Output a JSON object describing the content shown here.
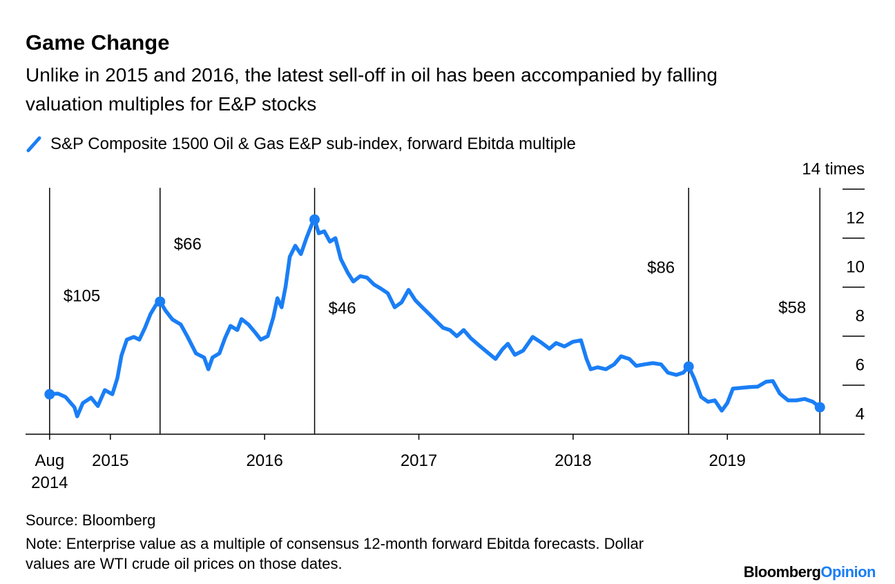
{
  "chart_data": {
    "type": "line",
    "title": "Game Change",
    "subtitle": "Unlike in 2015 and 2016, the latest sell-off in oil has been accompanied by falling valuation multiples for E&P stocks",
    "x": [
      2014.606,
      2014.66,
      2014.709,
      2014.767,
      2014.785,
      2014.821,
      2014.875,
      2014.919,
      2014.964,
      2015.013,
      2015.045,
      2015.072,
      2015.107,
      2015.152,
      2015.188,
      2015.224,
      2015.26,
      2015.295,
      2015.322,
      2015.358,
      2015.403,
      2015.456,
      2015.501,
      2015.555,
      2015.608,
      2015.635,
      2015.662,
      2015.707,
      2015.743,
      2015.779,
      2015.823,
      2015.85,
      2015.895,
      2015.94,
      2015.975,
      2016.02,
      2016.056,
      2016.083,
      2016.11,
      2016.136,
      2016.163,
      2016.199,
      2016.235,
      2016.271,
      2016.306,
      2016.324,
      2016.351,
      2016.387,
      2016.423,
      2016.459,
      2016.494,
      2016.539,
      2016.575,
      2016.62,
      2016.664,
      2016.709,
      2016.754,
      2016.799,
      2016.843,
      2016.888,
      2016.933,
      2016.978,
      2017.022,
      2017.067,
      2017.112,
      2017.157,
      2017.201,
      2017.246,
      2017.291,
      2017.336,
      2017.389,
      2017.443,
      2017.497,
      2017.541,
      2017.577,
      2017.622,
      2017.676,
      2017.738,
      2017.792,
      2017.846,
      2017.89,
      2017.944,
      2017.998,
      2018.051,
      2018.087,
      2018.114,
      2018.159,
      2018.213,
      2018.266,
      2018.311,
      2018.365,
      2018.409,
      2018.463,
      2018.517,
      2018.57,
      2018.615,
      2018.669,
      2018.714,
      2018.749,
      2018.785,
      2018.83,
      2018.875,
      2018.919,
      2018.964,
      2019.0,
      2019.036,
      2019.089,
      2019.143,
      2019.197,
      2019.251,
      2019.295,
      2019.34,
      2019.394,
      2019.447,
      2019.501,
      2019.555,
      2019.6
    ],
    "series": [
      {
        "name": "S&P Composite 1500 Oil & Gas E&P sub-index, forward Ebitda multiple",
        "color": "#1a7ef5",
        "values": [
          5.63,
          5.66,
          5.52,
          5.1,
          4.73,
          5.27,
          5.49,
          5.15,
          5.8,
          5.63,
          6.28,
          7.21,
          7.86,
          7.97,
          7.86,
          8.34,
          8.9,
          9.27,
          9.41,
          9.04,
          8.68,
          8.48,
          7.97,
          7.3,
          7.13,
          6.65,
          7.13,
          7.3,
          7.92,
          8.42,
          8.25,
          8.7,
          8.48,
          8.14,
          7.86,
          8.0,
          8.76,
          9.55,
          9.18,
          10.03,
          11.24,
          11.69,
          11.35,
          12.0,
          12.56,
          12.76,
          12.2,
          12.28,
          11.86,
          12.0,
          11.15,
          10.59,
          10.23,
          10.45,
          10.39,
          10.11,
          9.94,
          9.75,
          9.18,
          9.38,
          9.89,
          9.46,
          9.18,
          8.9,
          8.62,
          8.34,
          8.25,
          8.0,
          8.25,
          7.92,
          7.63,
          7.35,
          7.07,
          7.46,
          7.69,
          7.24,
          7.41,
          7.97,
          7.75,
          7.49,
          7.72,
          7.58,
          7.77,
          7.83,
          7.07,
          6.65,
          6.73,
          6.65,
          6.85,
          7.18,
          7.07,
          6.79,
          6.85,
          6.9,
          6.85,
          6.51,
          6.42,
          6.51,
          6.76,
          6.28,
          5.52,
          5.32,
          5.38,
          4.96,
          5.27,
          5.86,
          5.89,
          5.92,
          5.94,
          6.14,
          6.17,
          5.66,
          5.38,
          5.38,
          5.44,
          5.32,
          5.1
        ]
      }
    ],
    "xlim": [
      2014.45,
      2019.89
    ],
    "xticks": [
      {
        "value": 2014.606,
        "label": "Aug 2014"
      },
      2015,
      2016,
      2017,
      2018,
      2019
    ],
    "ylim": [
      4,
      14
    ],
    "yticks": [
      4,
      6,
      8,
      10,
      12,
      {
        "value": 14,
        "label": "14 times"
      }
    ],
    "annotations": [
      {
        "x": 2014.606,
        "value": 5.63,
        "label": "$105"
      },
      {
        "x": 2015.322,
        "value": 9.41,
        "label": "$66"
      },
      {
        "x": 2016.324,
        "value": 12.76,
        "label": "$46"
      },
      {
        "x": 2018.749,
        "value": 6.76,
        "label": "$86"
      },
      {
        "x": 2019.6,
        "value": 5.1,
        "label": "$58"
      }
    ],
    "source": "Source: Bloomberg",
    "note": "Note: Enterprise value as a multiple of consensus 12-month forward Ebitda forecasts. Dollar values are WTI crude oil prices on those dates."
  },
  "brand": {
    "name": "Bloomberg",
    "section": "Opinion"
  }
}
